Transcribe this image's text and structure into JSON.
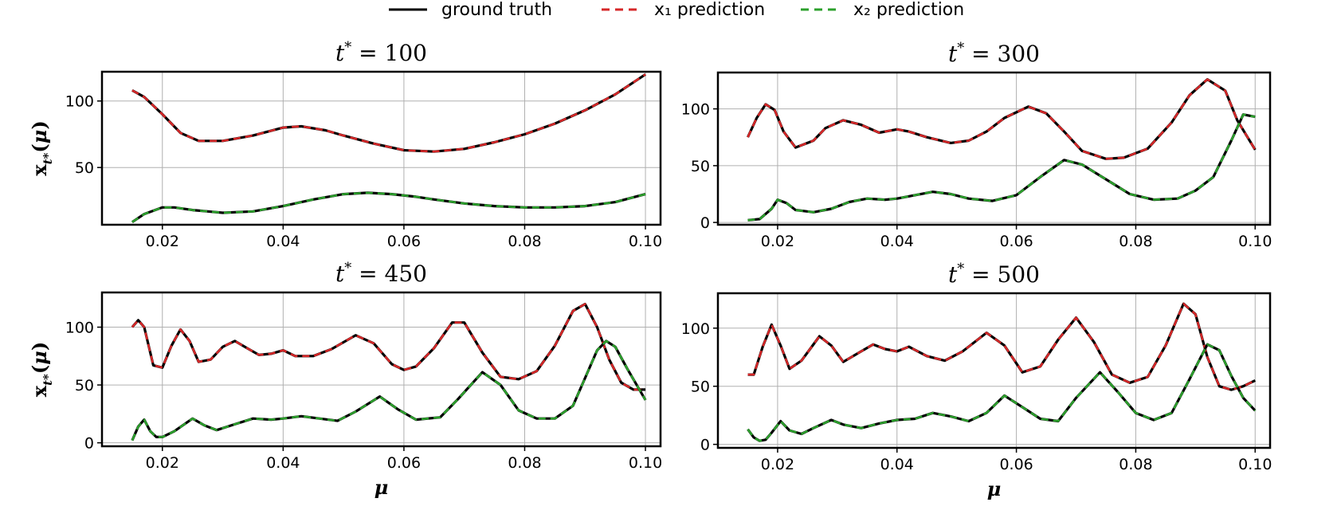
{
  "legend": {
    "entries": [
      {
        "label": "ground truth",
        "color": "#000000",
        "dash": "solid"
      },
      {
        "label": "x₁ prediction",
        "color": "#d62728",
        "dash": "dashed"
      },
      {
        "label": "x₂ prediction",
        "color": "#2ca02c",
        "dash": "dashed"
      }
    ]
  },
  "chart_data": [
    {
      "type": "line",
      "title": "t* = 100",
      "xlabel": "",
      "ylabel": "x_t*(μ)",
      "xlim": [
        0.01,
        0.1025
      ],
      "ylim": [
        7,
        122
      ],
      "xticks": [
        "0.02",
        "0.04",
        "0.06",
        "0.08",
        "0.10"
      ],
      "xtick_values": [
        0.02,
        0.04,
        0.06,
        0.08,
        0.1
      ],
      "yticks": [
        "50",
        "100"
      ],
      "ytick_values": [
        50,
        100
      ],
      "grid": true,
      "series": [
        {
          "name": "x₁",
          "x": [
            0.015,
            0.017,
            0.02,
            0.023,
            0.026,
            0.03,
            0.035,
            0.04,
            0.043,
            0.047,
            0.05,
            0.055,
            0.06,
            0.065,
            0.07,
            0.075,
            0.08,
            0.085,
            0.09,
            0.095,
            0.1
          ],
          "y": [
            108,
            103,
            90,
            76,
            70,
            70,
            74,
            80,
            81,
            78,
            74,
            68,
            63,
            62,
            64,
            69,
            75,
            83,
            93,
            105,
            120
          ]
        },
        {
          "name": "x₂",
          "x": [
            0.015,
            0.017,
            0.02,
            0.022,
            0.025,
            0.03,
            0.035,
            0.04,
            0.045,
            0.05,
            0.054,
            0.058,
            0.062,
            0.065,
            0.07,
            0.075,
            0.08,
            0.085,
            0.09,
            0.095,
            0.1
          ],
          "y": [
            9,
            15,
            20,
            20,
            18,
            16,
            17,
            21,
            26,
            30,
            31,
            30,
            28,
            26,
            23,
            21,
            20,
            20,
            21,
            24,
            30
          ]
        }
      ]
    },
    {
      "type": "line",
      "title": "t* = 300",
      "xlabel": "",
      "ylabel": "",
      "xlim": [
        0.01,
        0.1025
      ],
      "ylim": [
        -2,
        132
      ],
      "xticks": [
        "0.02",
        "0.04",
        "0.06",
        "0.08",
        "0.10"
      ],
      "xtick_values": [
        0.02,
        0.04,
        0.06,
        0.08,
        0.1
      ],
      "yticks": [
        "0",
        "50",
        "100"
      ],
      "ytick_values": [
        0,
        50,
        100
      ],
      "grid": true,
      "series": [
        {
          "name": "x₁",
          "x": [
            0.015,
            0.0165,
            0.018,
            0.0195,
            0.021,
            0.023,
            0.026,
            0.028,
            0.031,
            0.034,
            0.037,
            0.04,
            0.042,
            0.045,
            0.049,
            0.052,
            0.055,
            0.058,
            0.062,
            0.065,
            0.068,
            0.071,
            0.075,
            0.078,
            0.082,
            0.086,
            0.089,
            0.092,
            0.095,
            0.097,
            0.1
          ],
          "y": [
            75,
            92,
            104,
            99,
            80,
            66,
            72,
            83,
            90,
            86,
            79,
            82,
            80,
            75,
            70,
            72,
            80,
            92,
            102,
            96,
            80,
            63,
            56,
            57,
            65,
            88,
            112,
            126,
            116,
            90,
            64
          ]
        },
        {
          "name": "x₂",
          "x": [
            0.015,
            0.017,
            0.019,
            0.02,
            0.0215,
            0.023,
            0.026,
            0.029,
            0.032,
            0.035,
            0.038,
            0.04,
            0.043,
            0.046,
            0.049,
            0.052,
            0.056,
            0.06,
            0.064,
            0.068,
            0.071,
            0.075,
            0.079,
            0.083,
            0.087,
            0.09,
            0.093,
            0.096,
            0.098,
            0.1
          ],
          "y": [
            2,
            3,
            12,
            20,
            17,
            11,
            9,
            12,
            18,
            21,
            20,
            21,
            24,
            27,
            25,
            21,
            19,
            24,
            40,
            55,
            51,
            38,
            25,
            20,
            21,
            28,
            40,
            72,
            95,
            93
          ]
        }
      ]
    },
    {
      "type": "line",
      "title": "t* = 450",
      "xlabel": "μ",
      "ylabel": "x_t*(μ)",
      "xlim": [
        0.01,
        0.1025
      ],
      "ylim": [
        -3,
        130
      ],
      "xticks": [
        "0.02",
        "0.04",
        "0.06",
        "0.08",
        "0.10"
      ],
      "xtick_values": [
        0.02,
        0.04,
        0.06,
        0.08,
        0.1
      ],
      "yticks": [
        "0",
        "50",
        "100"
      ],
      "ytick_values": [
        0,
        50,
        100
      ],
      "grid": true,
      "series": [
        {
          "name": "x₁",
          "x": [
            0.015,
            0.016,
            0.017,
            0.0185,
            0.02,
            0.0215,
            0.023,
            0.0245,
            0.026,
            0.028,
            0.03,
            0.032,
            0.034,
            0.036,
            0.038,
            0.04,
            0.042,
            0.045,
            0.048,
            0.052,
            0.055,
            0.058,
            0.06,
            0.062,
            0.065,
            0.068,
            0.07,
            0.073,
            0.076,
            0.079,
            0.082,
            0.085,
            0.088,
            0.09,
            0.092,
            0.094,
            0.096,
            0.098,
            0.1
          ],
          "y": [
            100,
            106,
            100,
            67,
            65,
            84,
            98,
            88,
            70,
            72,
            83,
            88,
            82,
            76,
            77,
            80,
            75,
            75,
            81,
            93,
            86,
            68,
            63,
            66,
            82,
            104,
            104,
            78,
            57,
            55,
            62,
            84,
            114,
            120,
            100,
            72,
            52,
            46,
            46
          ]
        },
        {
          "name": "x₂",
          "x": [
            0.015,
            0.016,
            0.017,
            0.018,
            0.019,
            0.02,
            0.022,
            0.025,
            0.027,
            0.029,
            0.032,
            0.035,
            0.038,
            0.04,
            0.043,
            0.046,
            0.049,
            0.052,
            0.056,
            0.059,
            0.062,
            0.066,
            0.069,
            0.073,
            0.076,
            0.079,
            0.082,
            0.085,
            0.088,
            0.09,
            0.092,
            0.0935,
            0.095,
            0.097,
            0.1
          ],
          "y": [
            2,
            14,
            20,
            10,
            5,
            5,
            10,
            21,
            15,
            11,
            16,
            21,
            20,
            21,
            23,
            21,
            19,
            27,
            40,
            29,
            20,
            22,
            38,
            61,
            50,
            28,
            21,
            21,
            32,
            56,
            80,
            88,
            83,
            64,
            37
          ]
        }
      ]
    },
    {
      "type": "line",
      "title": "t* = 500",
      "xlabel": "μ",
      "ylabel": "",
      "xlim": [
        0.01,
        0.1025
      ],
      "ylim": [
        -3,
        130
      ],
      "xticks": [
        "0.02",
        "0.04",
        "0.06",
        "0.08",
        "0.10"
      ],
      "xtick_values": [
        0.02,
        0.04,
        0.06,
        0.08,
        0.1
      ],
      "yticks": [
        "0",
        "50",
        "100"
      ],
      "ytick_values": [
        0,
        50,
        100
      ],
      "grid": true,
      "series": [
        {
          "name": "x₁",
          "x": [
            0.015,
            0.016,
            0.0175,
            0.019,
            0.0205,
            0.022,
            0.024,
            0.027,
            0.029,
            0.031,
            0.034,
            0.036,
            0.038,
            0.04,
            0.042,
            0.045,
            0.048,
            0.051,
            0.055,
            0.058,
            0.061,
            0.064,
            0.067,
            0.07,
            0.073,
            0.076,
            0.079,
            0.082,
            0.085,
            0.088,
            0.09,
            0.092,
            0.094,
            0.096,
            0.098,
            0.1
          ],
          "y": [
            60,
            60,
            84,
            103,
            85,
            65,
            72,
            93,
            85,
            71,
            80,
            86,
            82,
            80,
            84,
            76,
            72,
            80,
            96,
            85,
            62,
            67,
            90,
            109,
            88,
            60,
            53,
            58,
            85,
            121,
            112,
            75,
            50,
            47,
            50,
            55
          ]
        },
        {
          "name": "x₂",
          "x": [
            0.015,
            0.016,
            0.017,
            0.018,
            0.019,
            0.0205,
            0.022,
            0.024,
            0.026,
            0.029,
            0.031,
            0.034,
            0.037,
            0.04,
            0.043,
            0.046,
            0.049,
            0.052,
            0.055,
            0.058,
            0.061,
            0.064,
            0.067,
            0.07,
            0.074,
            0.077,
            0.08,
            0.083,
            0.086,
            0.089,
            0.092,
            0.094,
            0.096,
            0.098,
            0.1
          ],
          "y": [
            13,
            6,
            3,
            4,
            10,
            20,
            12,
            9,
            14,
            21,
            17,
            14,
            18,
            21,
            22,
            27,
            24,
            20,
            27,
            42,
            32,
            22,
            20,
            40,
            62,
            45,
            27,
            21,
            27,
            56,
            86,
            81,
            59,
            40,
            29
          ]
        }
      ]
    }
  ]
}
